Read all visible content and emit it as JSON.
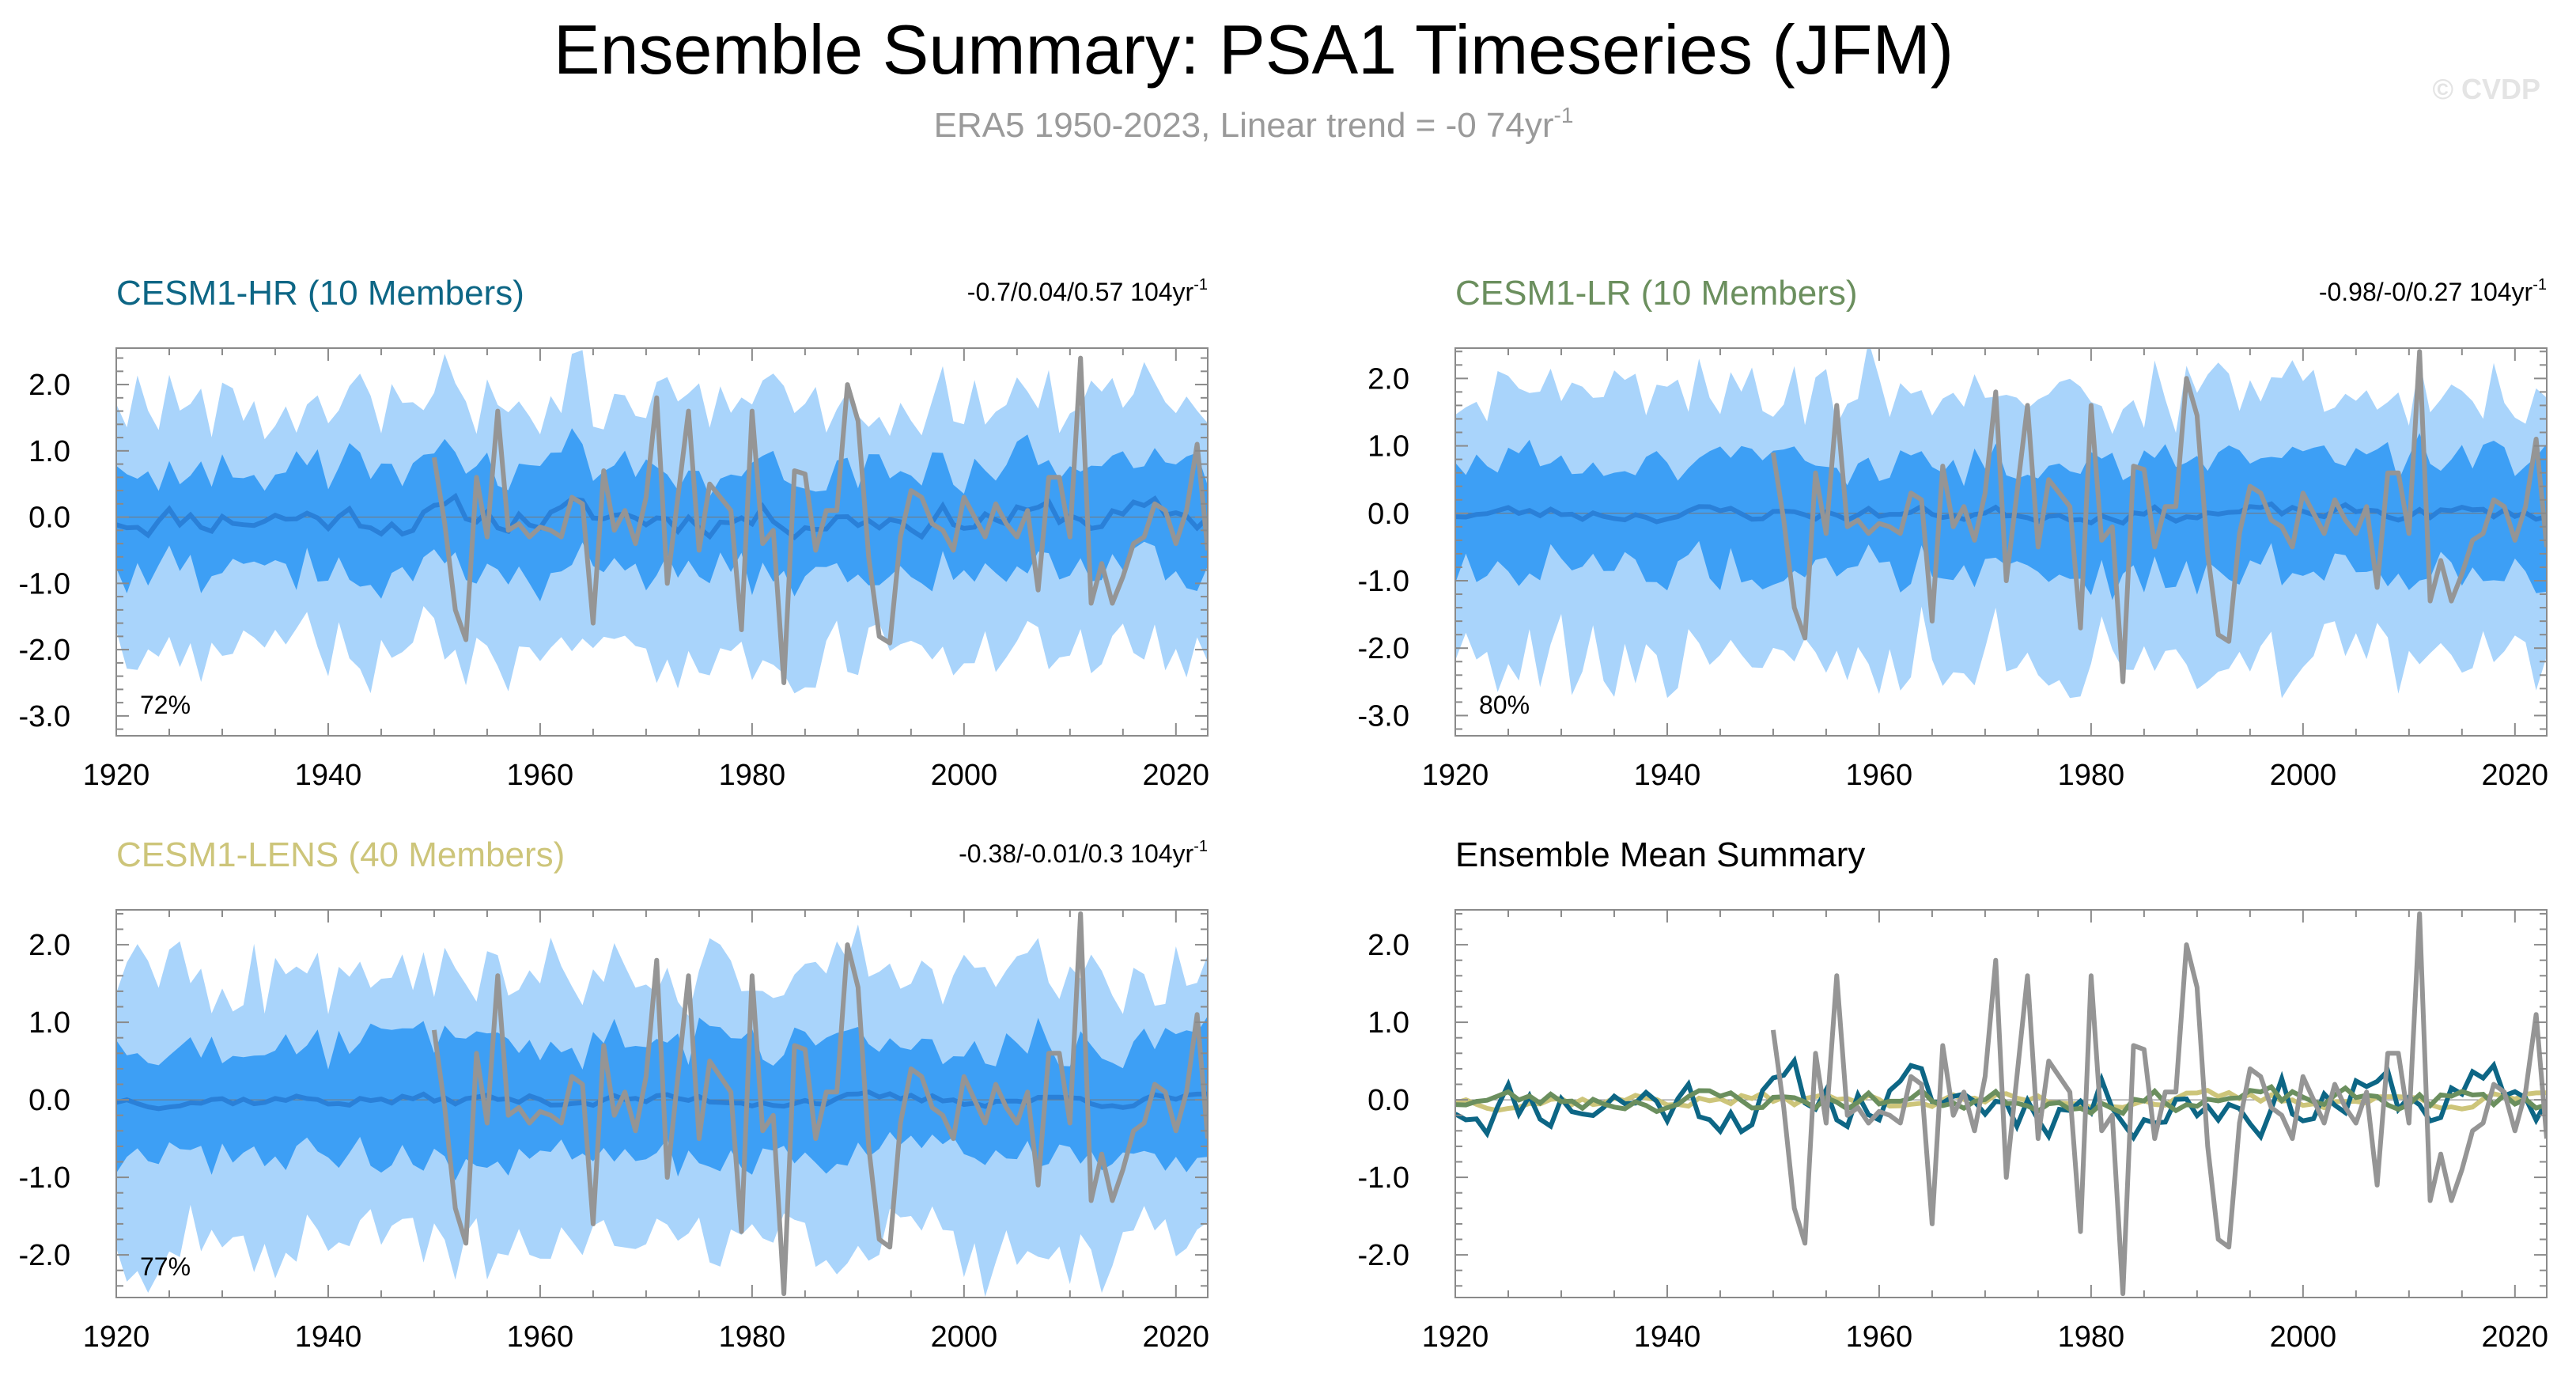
{
  "header": {
    "title": "Ensemble Summary: PSA1 Timeseries (JFM)",
    "subtitle_prefix": "ERA5 1950-2023, Linear trend = -0 74yr",
    "subtitle_sup": "-1",
    "watermark": "© CVDP"
  },
  "colors": {
    "hr": "#0d6685",
    "lr": "#6b8f5e",
    "lens": "#cdc57a",
    "band_outer": "#a9d4fb",
    "band_inner": "#3d9ff5",
    "ens_mean": "#2a80d8",
    "obs": "#959595",
    "frame": "#8a8a8a"
  },
  "chart_data": [
    {
      "type": "area",
      "id": "hr",
      "title": "CESM1-HR (10 Members)",
      "trend_text": "-0.7/0.04/0.57 104yr",
      "trend_sup": "-1",
      "percent_label": "72%",
      "xlim": [
        1920,
        2023
      ],
      "ylim": [
        -3.3,
        2.55
      ],
      "xticks": [
        1920,
        1940,
        1960,
        1980,
        2000,
        2020
      ],
      "xtick_labels": [
        "1920",
        "1940",
        "1960",
        "1980",
        "2000",
        "2020"
      ],
      "yticks": [
        2.0,
        1.0,
        0.0,
        -1.0,
        -2.0,
        -3.0
      ],
      "ytick_labels": [
        "2.0",
        "1.0",
        "0.0",
        "-1.0",
        "-2.0",
        "-3.0"
      ],
      "band_scale": 1.0,
      "mean_seed": 11,
      "mean_amp": 0.22,
      "band_seed": 101
    },
    {
      "type": "area",
      "id": "lr",
      "title": "CESM1-LR (10 Members)",
      "trend_text": "-0.98/-0/0.27 104yr",
      "trend_sup": "-1",
      "percent_label": "80%",
      "xlim": [
        1920,
        2023
      ],
      "ylim": [
        -3.3,
        2.45
      ],
      "xticks": [
        1920,
        1940,
        1960,
        1980,
        2000,
        2020
      ],
      "xtick_labels": [
        "1920",
        "1940",
        "1960",
        "1980",
        "2000",
        "2020"
      ],
      "yticks": [
        2.0,
        1.0,
        0.0,
        -1.0,
        -2.0,
        -3.0
      ],
      "ytick_labels": [
        "2.0",
        "1.0",
        "0.0",
        "-1.0",
        "-2.0",
        "-3.0"
      ],
      "band_scale": 1.05,
      "mean_seed": 23,
      "mean_amp": 0.1,
      "band_seed": 202
    },
    {
      "type": "area",
      "id": "lens",
      "title": "CESM1-LENS (40 Members)",
      "trend_text": "-0.38/-0.01/0.3 104yr",
      "trend_sup": "-1",
      "percent_label": "77%",
      "xlim": [
        1920,
        2023
      ],
      "ylim": [
        -2.55,
        2.45
      ],
      "xticks": [
        1920,
        1940,
        1960,
        1980,
        2000,
        2020
      ],
      "xtick_labels": [
        "1920",
        "1940",
        "1960",
        "1980",
        "2000",
        "2020"
      ],
      "yticks": [
        2.0,
        1.0,
        0.0,
        -1.0,
        -2.0
      ],
      "ytick_labels": [
        "2.0",
        "1.0",
        "0.0",
        "-1.0",
        "-2.0"
      ],
      "band_scale": 0.92,
      "mean_seed": 37,
      "mean_amp": 0.07,
      "band_seed": 303
    },
    {
      "type": "line",
      "id": "mean",
      "title": "Ensemble Mean Summary",
      "trend_text": "",
      "trend_sup": "",
      "percent_label": "",
      "xlim": [
        1920,
        2023
      ],
      "ylim": [
        -2.55,
        2.45
      ],
      "xticks": [
        1920,
        1940,
        1960,
        1980,
        2000,
        2020
      ],
      "xtick_labels": [
        "1920",
        "1940",
        "1960",
        "1980",
        "2000",
        "2020"
      ],
      "yticks": [
        2.0,
        1.0,
        0.0,
        -1.0,
        -2.0
      ],
      "ytick_labels": [
        "2.0",
        "1.0",
        "0.0",
        "-1.0",
        "-2.0"
      ]
    }
  ],
  "observed": {
    "start_year": 1950,
    "values": [
      0.9,
      -0.1,
      -1.4,
      -1.85,
      0.6,
      -0.3,
      1.6,
      -0.2,
      -0.1,
      -0.3,
      -0.15,
      -0.2,
      -0.3,
      0.3,
      0.2,
      -1.6,
      0.7,
      -0.2,
      0.1,
      -0.4,
      0.3,
      1.8,
      -1.0,
      0.3,
      1.6,
      -0.5,
      0.5,
      0.3,
      0.1,
      -1.7,
      1.6,
      -0.4,
      -0.2,
      -2.5,
      0.7,
      0.65,
      -0.5,
      0.1,
      0.1,
      2.0,
      1.45,
      -0.6,
      -1.8,
      -1.9,
      -0.3,
      0.4,
      0.3,
      -0.1,
      -0.2,
      -0.5,
      0.3,
      0.0,
      -0.3,
      0.2,
      -0.1,
      -0.3,
      0.1,
      -1.1,
      0.6,
      0.6,
      -0.3,
      2.4,
      -1.3,
      -0.7,
      -1.3,
      -0.9,
      -0.4,
      -0.3,
      0.2,
      0.1,
      -0.4,
      0.1,
      1.1,
      -0.5
    ]
  }
}
